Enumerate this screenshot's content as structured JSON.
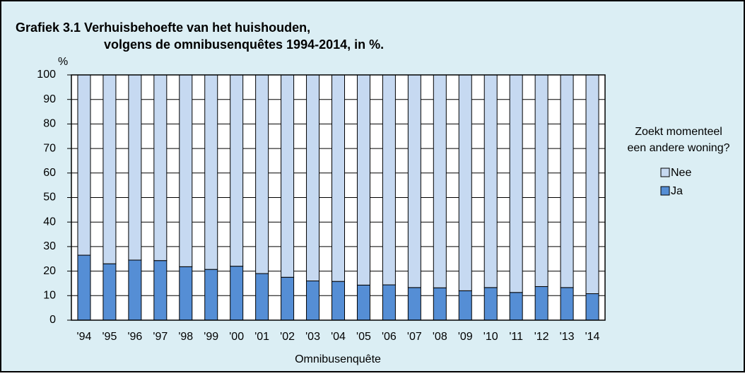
{
  "chart_data": {
    "type": "stacked_bar",
    "title": [
      "Grafiek 3.1 Verhuisbehoefte van het huishouden,",
      "volgens de omnibusenquêtes 1994-2014, in %."
    ],
    "y_unit": "%",
    "x_label": "Omnibusenquête",
    "legend_title": [
      "Zoekt momenteel",
      "een andere woning?"
    ],
    "categories": [
      "'94",
      "'95",
      "'96",
      "'97",
      "'98",
      "'99",
      "'00",
      "'01",
      "'02",
      "'03",
      "'04",
      "'05",
      "'06",
      "'07",
      "'08",
      "'09",
      "'10",
      "'11",
      "'12",
      "'13",
      "'14"
    ],
    "series": [
      {
        "name": "Ja",
        "color": "#558ed5",
        "values": [
          26.5,
          23,
          24.5,
          24.3,
          21.8,
          20.7,
          22,
          19,
          17.5,
          16,
          15.8,
          14.3,
          14.4,
          13.3,
          13.2,
          12,
          13.3,
          11.3,
          13.7,
          13.3,
          10.8
        ]
      },
      {
        "name": "Nee",
        "color": "#c6d9f1",
        "values": [
          73.5,
          77,
          75.5,
          75.7,
          78.2,
          79.3,
          78,
          81,
          82.5,
          84,
          84.2,
          85.7,
          85.6,
          86.7,
          86.8,
          88,
          86.7,
          88.7,
          86.3,
          86.7,
          89.2
        ]
      }
    ],
    "ylim": [
      0,
      100
    ],
    "yticks": [
      0,
      10,
      20,
      30,
      40,
      50,
      60,
      70,
      80,
      90,
      100
    ],
    "grid": true,
    "legend": "right"
  }
}
